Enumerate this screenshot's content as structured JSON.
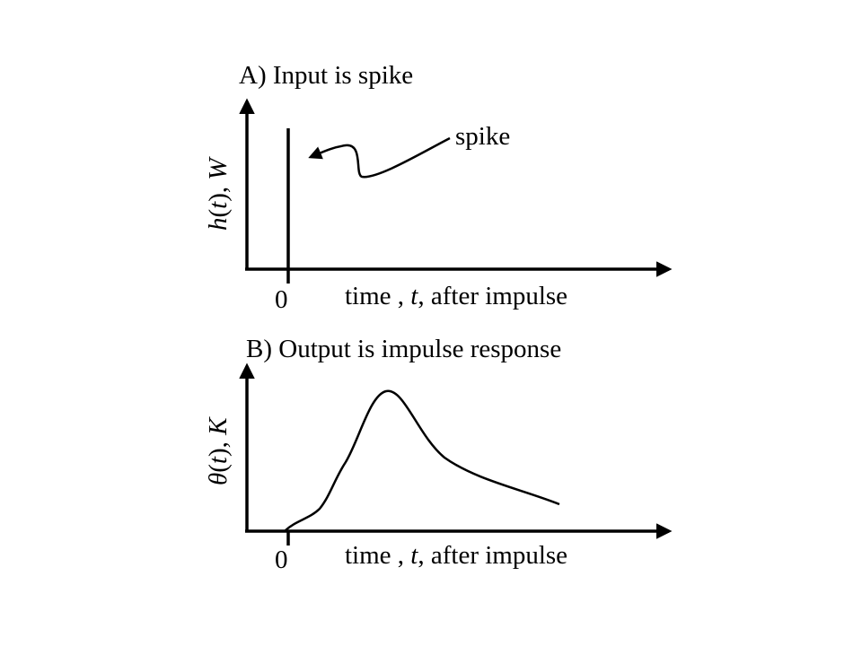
{
  "panel_a": {
    "title": "A) Input is spike",
    "ylabel_func": "h",
    "ylabel_arg": "t",
    "ylabel_sym": "W",
    "annotation": "spike",
    "xlabel_pre": "time , ",
    "xlabel_var": "t",
    "xlabel_post": ", after impulse",
    "origin": "0"
  },
  "panel_b": {
    "title": "B) Output is impulse response",
    "ylabel_func": "θ",
    "ylabel_arg": "t",
    "ylabel_sym": "K",
    "xlabel_pre": "time , ",
    "xlabel_var": "t",
    "xlabel_post": ", after impulse",
    "origin": "0"
  }
}
